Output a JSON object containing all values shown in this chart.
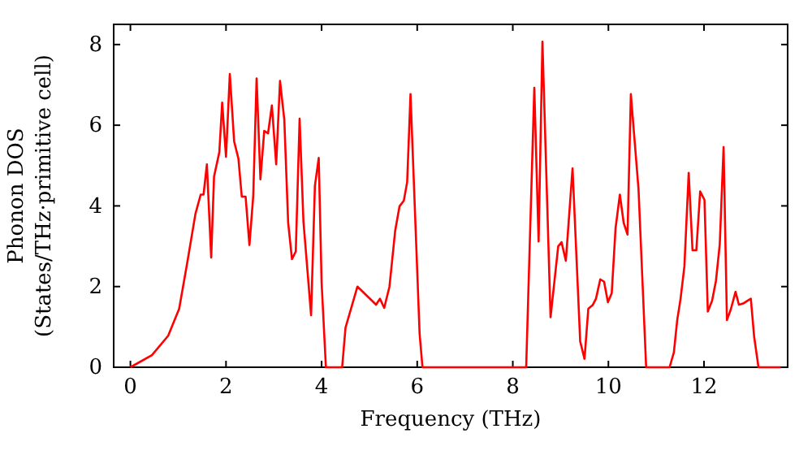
{
  "chart_data": {
    "type": "line",
    "xlabel": "Frequency (THz)",
    "ylabel": "Phonon DOS\n(States/THz·primitive cell)",
    "xlim": [
      -0.35,
      13.75
    ],
    "ylim": [
      0,
      8.5
    ],
    "xticks": [
      0,
      2,
      4,
      6,
      8,
      10,
      12
    ],
    "yticks": [
      0,
      2,
      4,
      6,
      8
    ],
    "grid": false,
    "marker": "none",
    "line_style": "solid",
    "series": [
      {
        "color": "#ff0000",
        "x": [
          0,
          0.45,
          0.79,
          1.02,
          1.19,
          1.36,
          1.47,
          1.53,
          1.6,
          1.69,
          1.75,
          1.86,
          1.92,
          2.0,
          2.08,
          2.17,
          2.26,
          2.33,
          2.41,
          2.49,
          2.57,
          2.64,
          2.72,
          2.8,
          2.88,
          2.96,
          3.05,
          3.13,
          3.22,
          3.3,
          3.38,
          3.46,
          3.54,
          3.62,
          3.78,
          3.86,
          3.94,
          4.0,
          4.09,
          4.43,
          4.5,
          4.75,
          5.14,
          5.22,
          5.31,
          5.42,
          5.54,
          5.63,
          5.72,
          5.79,
          5.86,
          6.05,
          6.11,
          8.28,
          8.45,
          8.54,
          8.62,
          8.79,
          8.95,
          9.02,
          9.11,
          9.25,
          9.41,
          9.5,
          9.58,
          9.67,
          9.74,
          9.83,
          9.91,
          9.99,
          10.07,
          10.15,
          10.24,
          10.32,
          10.4,
          10.47,
          10.63,
          10.79,
          11.28,
          11.37,
          11.44,
          11.51,
          11.59,
          11.68,
          11.76,
          11.84,
          11.92,
          12.01,
          12.08,
          12.17,
          12.25,
          12.33,
          12.41,
          12.48,
          12.56,
          12.66,
          12.73,
          12.82,
          12.91,
          12.98,
          13.05,
          13.14,
          13.6
        ],
        "values": [
          0,
          0.3,
          0.78,
          1.45,
          2.6,
          3.8,
          4.28,
          4.28,
          5.03,
          2.72,
          4.73,
          5.33,
          6.56,
          5.22,
          7.27,
          5.6,
          5.17,
          4.23,
          4.23,
          3.03,
          4.25,
          7.16,
          4.66,
          5.86,
          5.8,
          6.49,
          5.03,
          7.1,
          6.13,
          3.59,
          2.68,
          2.87,
          6.16,
          3.62,
          1.29,
          4.5,
          5.19,
          2.1,
          0,
          0,
          0.98,
          2.0,
          1.55,
          1.7,
          1.47,
          2.0,
          3.39,
          3.99,
          4.13,
          4.59,
          6.77,
          0.84,
          0,
          0,
          6.93,
          3.12,
          8.07,
          1.24,
          3.0,
          3.1,
          2.64,
          4.93,
          0.64,
          0.21,
          1.45,
          1.54,
          1.7,
          2.18,
          2.12,
          1.61,
          1.84,
          3.45,
          4.28,
          3.58,
          3.29,
          6.77,
          4.42,
          0,
          0,
          0.37,
          1.17,
          1.7,
          2.5,
          4.82,
          2.9,
          2.9,
          4.36,
          4.15,
          1.38,
          1.65,
          2.14,
          3.05,
          5.46,
          1.17,
          1.43,
          1.87,
          1.55,
          1.58,
          1.65,
          1.7,
          0.75,
          0,
          0
        ]
      }
    ]
  }
}
